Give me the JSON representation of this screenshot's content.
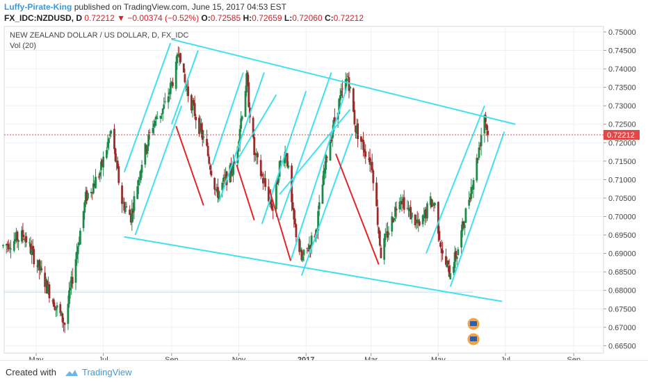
{
  "header": {
    "author": "Luffy-Pirate-King",
    "published": "published on TradingView.com, June 15, 2017 04:53 EST",
    "symbol": "FX_IDC:NZDUSD, D",
    "last": "0.72212",
    "change": "−0.00374 (−0.52%)",
    "o_label": "O:",
    "o": "0.72585",
    "h_label": "H:",
    "h": "0.72659",
    "l_label": "L:",
    "l": "0.72060",
    "c_label": "C:",
    "c": "0.72212"
  },
  "pane": {
    "title": "NEW ZEALAND DOLLAR / US DOLLAR, D, FX_IDC",
    "volume_label": "Vol (20)"
  },
  "footer": {
    "created_with": "Created with",
    "brand": "TradingView"
  },
  "colors": {
    "up": "#1e8a4a",
    "down": "#9b2b2b",
    "channel": "#3fe0f0",
    "red_line": "#e52224",
    "last_price_tag": "#e04848"
  },
  "chart_data": {
    "type": "candlestick",
    "title": "NEW ZEALAND DOLLAR / US DOLLAR, D, FX_IDC",
    "x_ticks": [
      "May",
      "Jul",
      "Sep",
      "Nov",
      "2017",
      "Mar",
      "May",
      "Jul",
      "Sep"
    ],
    "y_ticks": [
      "0.75000",
      "0.74500",
      "0.74000",
      "0.73500",
      "0.73000",
      "0.72500",
      "0.72000",
      "0.71500",
      "0.71000",
      "0.70500",
      "0.70000",
      "0.69500",
      "0.69000",
      "0.68500",
      "0.68000",
      "0.67500",
      "0.67000",
      "0.66500"
    ],
    "ylim": [
      0.663,
      0.7515
    ],
    "last_price": "0.72212",
    "price_path": [
      [
        "2016-04-01",
        0.692
      ],
      [
        "2016-04-20",
        0.695
      ],
      [
        "2016-05-05",
        0.685
      ],
      [
        "2016-05-20",
        0.675
      ],
      [
        "2016-05-27",
        0.671
      ],
      [
        "2016-06-15",
        0.705
      ],
      [
        "2016-06-28",
        0.712
      ],
      [
        "2016-07-08",
        0.723
      ],
      [
        "2016-07-18",
        0.704
      ],
      [
        "2016-07-26",
        0.7
      ],
      [
        "2016-08-05",
        0.715
      ],
      [
        "2016-08-15",
        0.725
      ],
      [
        "2016-08-26",
        0.73
      ],
      [
        "2016-09-05",
        0.74
      ],
      [
        "2016-09-08",
        0.746
      ],
      [
        "2016-09-12",
        0.737
      ],
      [
        "2016-09-22",
        0.728
      ],
      [
        "2016-10-03",
        0.718
      ],
      [
        "2016-10-12",
        0.706
      ],
      [
        "2016-10-20",
        0.71
      ],
      [
        "2016-10-28",
        0.714
      ],
      [
        "2016-11-08",
        0.737
      ],
      [
        "2016-11-15",
        0.717
      ],
      [
        "2016-11-25",
        0.708
      ],
      [
        "2016-12-02",
        0.702
      ],
      [
        "2016-12-08",
        0.714
      ],
      [
        "2016-12-14",
        0.718
      ],
      [
        "2016-12-20",
        0.7
      ],
      [
        "2016-12-28",
        0.688
      ],
      [
        "2017-01-10",
        0.696
      ],
      [
        "2017-01-20",
        0.717
      ],
      [
        "2017-01-30",
        0.73
      ],
      [
        "2017-02-08",
        0.738
      ],
      [
        "2017-02-15",
        0.724
      ],
      [
        "2017-02-22",
        0.719
      ],
      [
        "2017-03-02",
        0.714
      ],
      [
        "2017-03-10",
        0.69
      ],
      [
        "2017-03-20",
        0.699
      ],
      [
        "2017-03-27",
        0.706
      ],
      [
        "2017-04-05",
        0.701
      ],
      [
        "2017-04-14",
        0.697
      ],
      [
        "2017-04-24",
        0.704
      ],
      [
        "2017-04-28",
        0.703
      ],
      [
        "2017-05-05",
        0.689
      ],
      [
        "2017-05-11",
        0.685
      ],
      [
        "2017-05-18",
        0.69
      ],
      [
        "2017-05-26",
        0.701
      ],
      [
        "2017-06-05",
        0.715
      ],
      [
        "2017-06-12",
        0.728
      ],
      [
        "2017-06-15",
        0.7221
      ]
    ],
    "lines": [
      {
        "color": "channel",
        "from": [
          "2016-09-01",
          0.748
        ],
        "to": [
          "2017-07-10",
          0.725
        ]
      },
      {
        "color": "channel",
        "from": [
          "2016-07-20",
          0.6945
        ],
        "to": [
          "2017-06-28",
          0.677
        ]
      },
      {
        "color": "channel",
        "from": [
          "2016-07-20",
          0.712
        ],
        "to": [
          "2016-08-31",
          0.747
        ]
      },
      {
        "color": "channel",
        "from": [
          "2016-07-30",
          0.695
        ],
        "to": [
          "2016-09-10",
          0.73
        ]
      },
      {
        "color": "channel",
        "from": [
          "2016-09-01",
          0.725
        ],
        "to": [
          "2016-09-25",
          0.745
        ]
      },
      {
        "color": "channel",
        "from": [
          "2016-10-08",
          0.714
        ],
        "to": [
          "2016-11-05",
          0.739
        ]
      },
      {
        "color": "channel",
        "from": [
          "2016-10-14",
          0.704
        ],
        "to": [
          "2016-11-24",
          0.739
        ]
      },
      {
        "color": "channel",
        "from": [
          "2016-10-28",
          0.714
        ],
        "to": [
          "2016-12-05",
          0.733
        ]
      },
      {
        "color": "channel",
        "from": [
          "2016-11-22",
          0.698
        ],
        "to": [
          "2017-01-01",
          0.734
        ]
      },
      {
        "color": "channel",
        "from": [
          "2016-12-08",
          0.699
        ],
        "to": [
          "2017-01-24",
          0.739
        ]
      },
      {
        "color": "channel",
        "from": [
          "2016-12-18",
          0.688
        ],
        "to": [
          "2017-02-07",
          0.735
        ]
      },
      {
        "color": "channel",
        "from": [
          "2016-12-28",
          0.684
        ],
        "to": [
          "2017-02-12",
          0.7225
        ]
      },
      {
        "color": "channel",
        "from": [
          "2016-12-08",
          0.706
        ],
        "to": [
          "2017-02-10",
          0.729
        ]
      },
      {
        "color": "channel",
        "from": [
          "2017-04-20",
          0.69
        ],
        "to": [
          "2017-06-12",
          0.73
        ]
      },
      {
        "color": "channel",
        "from": [
          "2017-05-12",
          0.681
        ],
        "to": [
          "2017-06-30",
          0.723
        ]
      },
      {
        "color": "red_line",
        "from": [
          "2016-09-05",
          0.7245
        ],
        "to": [
          "2016-09-30",
          0.703
        ]
      },
      {
        "color": "red_line",
        "from": [
          "2016-10-30",
          0.714
        ],
        "to": [
          "2016-11-15",
          0.699
        ]
      },
      {
        "color": "red_line",
        "from": [
          "2016-11-28",
          0.708
        ],
        "to": [
          "2016-12-18",
          0.688
        ]
      },
      {
        "color": "red_line",
        "from": [
          "2017-01-28",
          0.717
        ],
        "to": [
          "2017-03-08",
          0.687
        ]
      }
    ],
    "hline": 0.6795
  }
}
